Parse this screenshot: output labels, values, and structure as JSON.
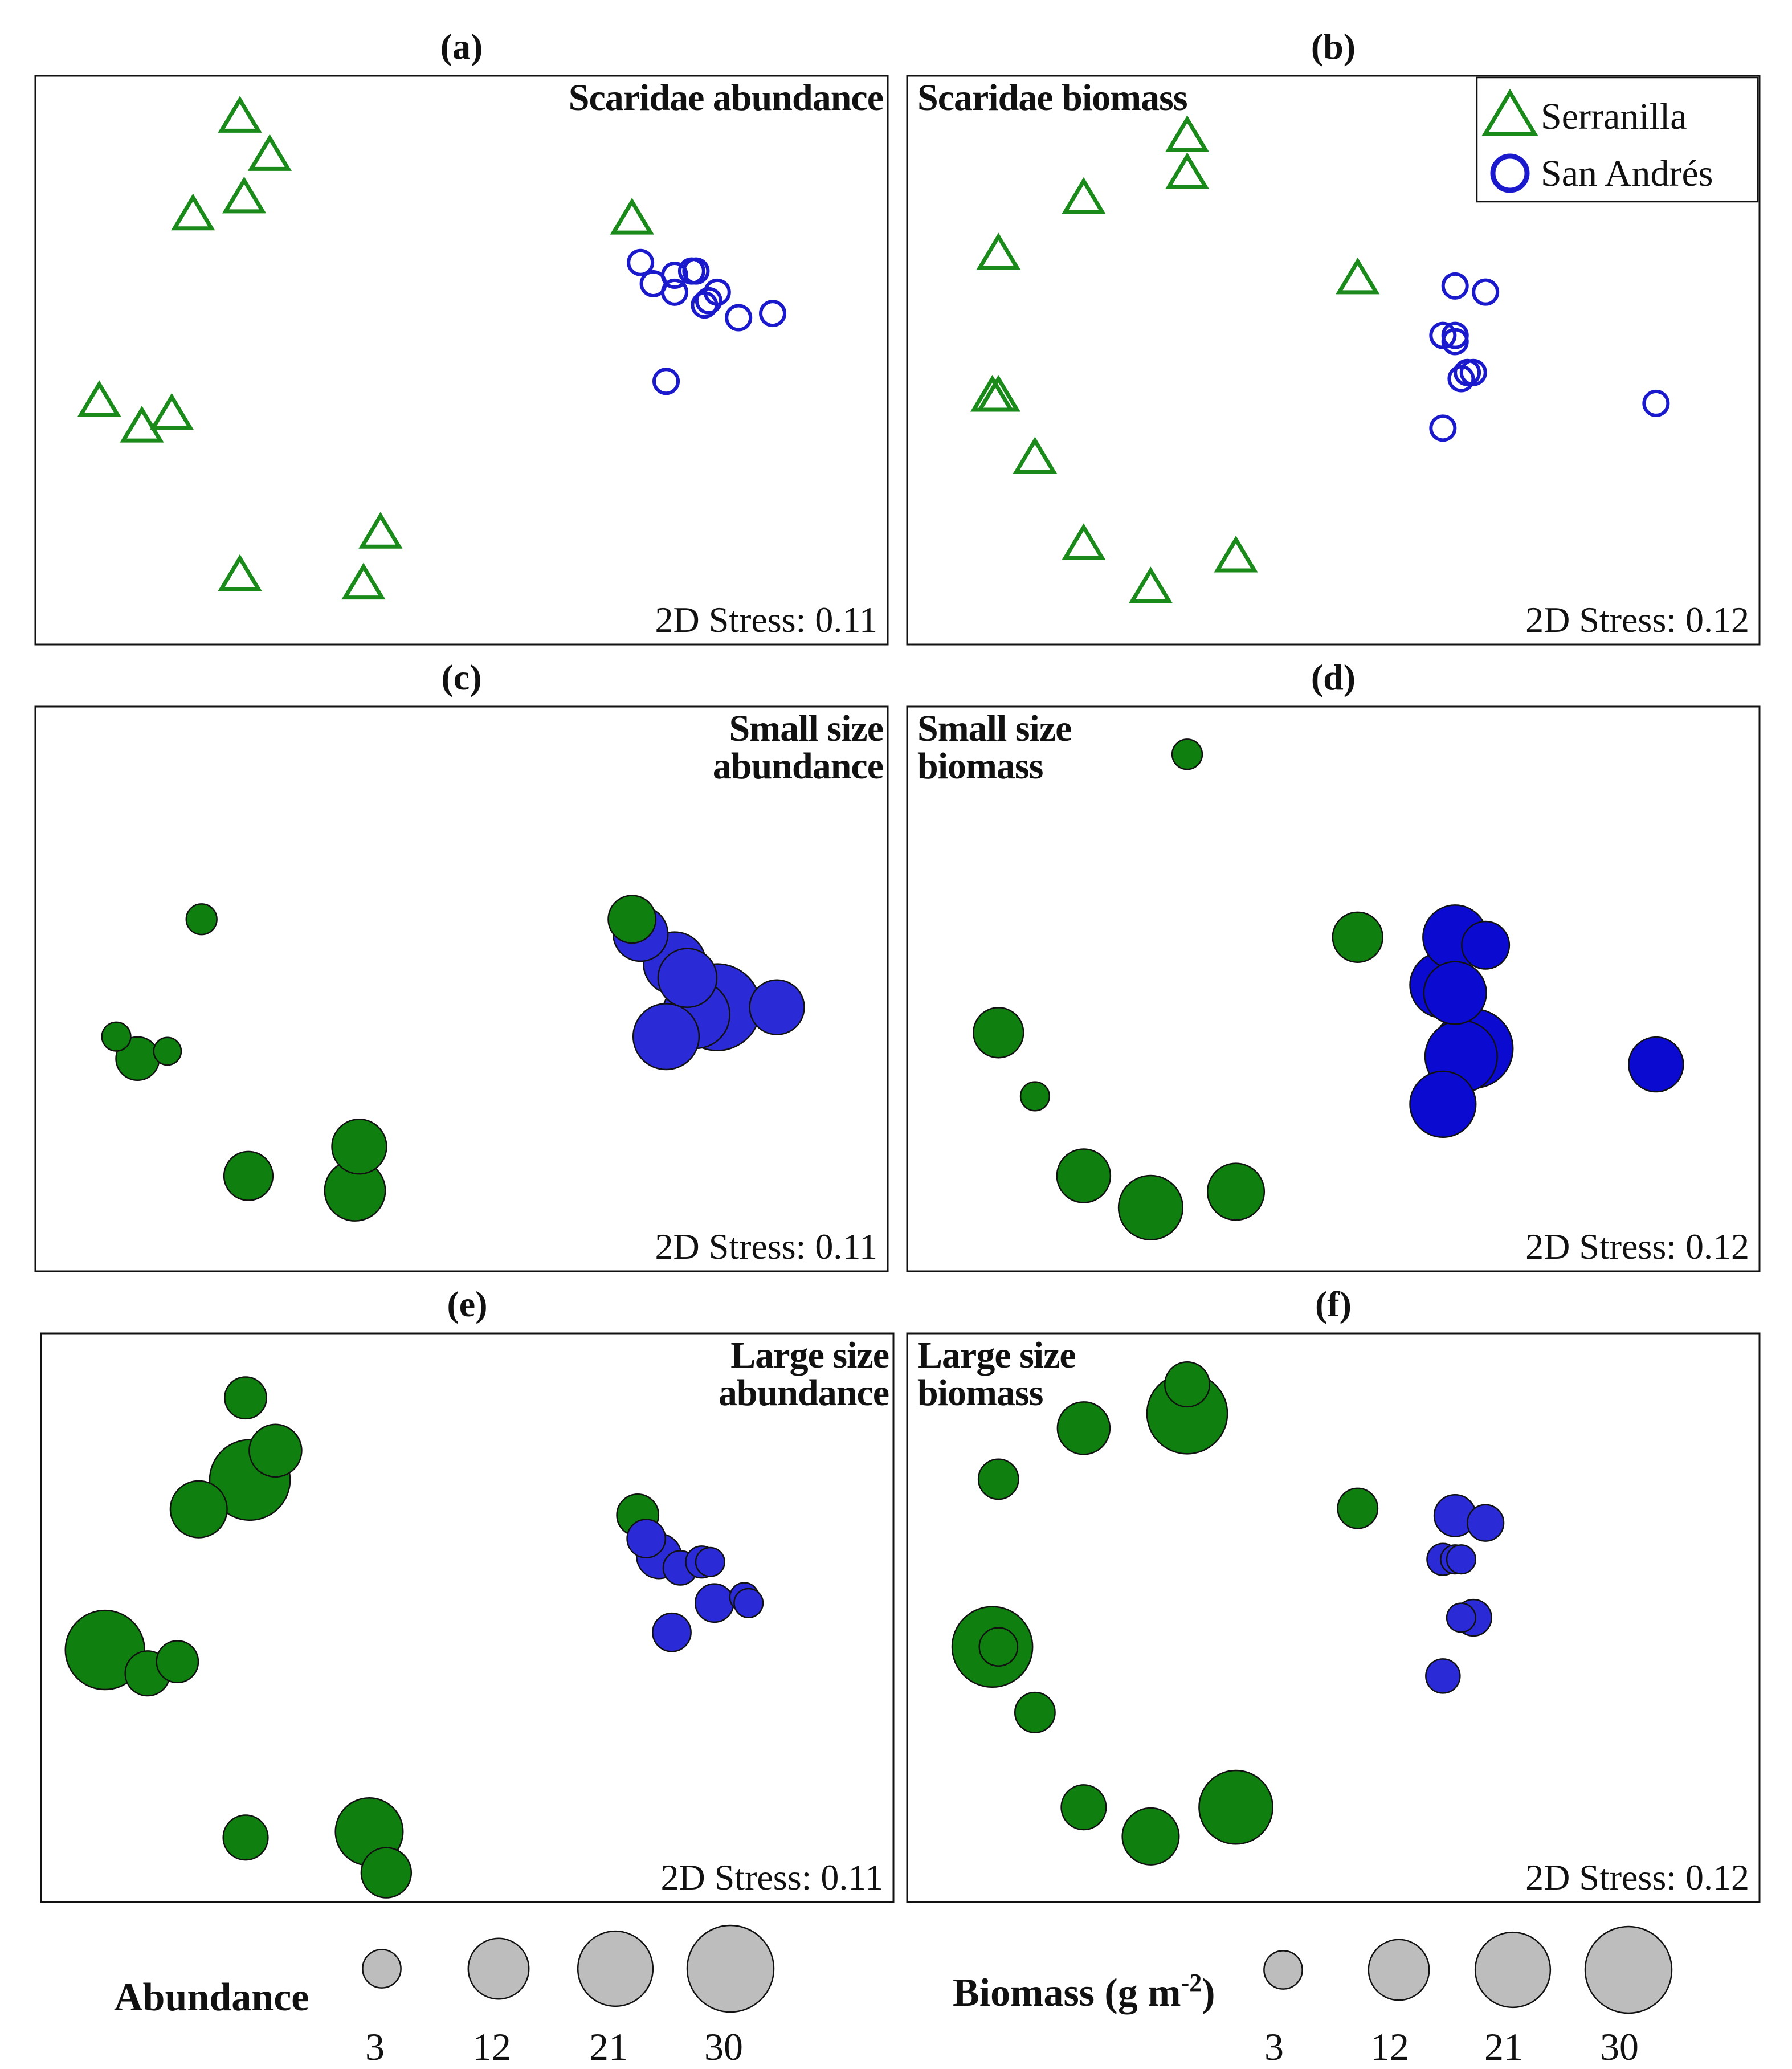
{
  "colors": {
    "serranilla": "#1a8a1a",
    "san_andres": "#1a1acc",
    "bubble_serranilla": "#0f7f0f",
    "bubble_san_andres": "#2a2ad6",
    "bubble_san_andres_biomass": "#0a0ad0",
    "scale_gray": "#bdbdbd"
  },
  "legend": {
    "serranilla": "Serranilla",
    "san_andres": "San Andrés"
  },
  "size_legends": {
    "abundance": {
      "title": "Abundance",
      "values": [
        3,
        12,
        21,
        30
      ]
    },
    "biomass": {
      "title_main": "Biomass (g m",
      "title_sup": "-2",
      "title_end": ")",
      "values": [
        3,
        12,
        21,
        30
      ]
    }
  },
  "chart_data": [
    {
      "id": "a",
      "label": "(a)",
      "type": "scatter",
      "title_lines": [
        "Scaridae abundance"
      ],
      "stress": "2D Stress: 0.11",
      "axes": "none",
      "series": [
        {
          "name": "Serranilla",
          "marker": "triangle",
          "points": [
            [
              -1.12,
              0.72
            ],
            [
              -1.05,
              0.63
            ],
            [
              -1.11,
              0.53
            ],
            [
              -1.23,
              0.49
            ],
            [
              -1.45,
              0.05
            ],
            [
              -1.35,
              -0.01
            ],
            [
              -1.28,
              0.02
            ],
            [
              -1.12,
              -0.36
            ],
            [
              -0.83,
              -0.38
            ],
            [
              -0.79,
              -0.26
            ],
            [
              -0.2,
              0.48
            ]
          ]
        },
        {
          "name": "San Andrés",
          "marker": "circle",
          "points": [
            [
              -0.18,
              0.38
            ],
            [
              -0.15,
              0.33
            ],
            [
              -0.1,
              0.35
            ],
            [
              -0.06,
              0.36
            ],
            [
              -0.05,
              0.36
            ],
            [
              -0.02,
              0.29
            ],
            [
              -0.03,
              0.28
            ],
            [
              0.0,
              0.31
            ],
            [
              0.13,
              0.26
            ],
            [
              -0.12,
              0.1
            ],
            [
              0.05,
              0.25
            ],
            [
              -0.1,
              0.31
            ]
          ]
        }
      ]
    },
    {
      "id": "b",
      "label": "(b)",
      "type": "scatter",
      "title_lines": [
        "Scaridae biomass"
      ],
      "stress": "2D Stress: 0.12",
      "axes": "none",
      "series": [
        {
          "name": "Serranilla",
          "marker": "triangle",
          "points": [
            [
              0.56,
              0.78
            ],
            [
              0.56,
              0.72
            ],
            [
              0.39,
              0.68
            ],
            [
              0.25,
              0.59
            ],
            [
              0.25,
              0.36
            ],
            [
              0.24,
              0.36
            ],
            [
              0.31,
              0.26
            ],
            [
              0.39,
              0.12
            ],
            [
              0.5,
              0.05
            ],
            [
              0.64,
              0.1
            ],
            [
              0.84,
              0.55
            ]
          ]
        },
        {
          "name": "San Andrés",
          "marker": "circle",
          "points": [
            [
              1.0,
              0.54
            ],
            [
              1.05,
              0.53
            ],
            [
              0.98,
              0.46
            ],
            [
              1.0,
              0.46
            ],
            [
              1.0,
              0.45
            ],
            [
              1.02,
              0.4
            ],
            [
              1.03,
              0.4
            ],
            [
              1.01,
              0.39
            ],
            [
              0.98,
              0.31
            ],
            [
              1.33,
              0.35
            ]
          ]
        }
      ]
    },
    {
      "id": "c",
      "label": "(c)",
      "type": "bubble",
      "title_lines": [
        "Small size",
        "abundance"
      ],
      "stress": "2D Stress: 0.11",
      "size_measure": "Abundance",
      "series": [
        {
          "name": "Serranilla",
          "points": [
            [
              -1.21,
              0.26,
              1.3
            ],
            [
              -1.41,
              0.1,
              1
            ],
            [
              -1.29,
              0.08,
              0.8
            ],
            [
              -1.36,
              0.07,
              4.5
            ],
            [
              -1.1,
              -0.09,
              6.5
            ],
            [
              -0.84,
              -0.05,
              9
            ],
            [
              -0.85,
              -0.11,
              12
            ],
            [
              -0.2,
              0.26,
              6
            ]
          ]
        },
        {
          "name": "San Andrés",
          "points": [
            [
              -0.18,
              0.24,
              9
            ],
            [
              -0.1,
              0.2,
              13
            ],
            [
              -0.07,
              0.18,
              11
            ],
            [
              0.0,
              0.14,
              30
            ],
            [
              -0.05,
              0.13,
              16
            ],
            [
              -0.12,
              0.1,
              15
            ],
            [
              0.14,
              0.14,
              9
            ]
          ]
        }
      ]
    },
    {
      "id": "d",
      "label": "(d)",
      "type": "bubble",
      "title_lines": [
        "Small size",
        "biomass"
      ],
      "stress": "2D Stress: 0.12",
      "size_measure": "Biomass (g m-2)",
      "series": [
        {
          "name": "Serranilla",
          "points": [
            [
              0.56,
              0.86
            ],
            [
              0.25,
              0.51
            ],
            [
              0.31,
              0.43
            ],
            [
              0.39,
              0.33
            ],
            [
              0.5,
              0.29
            ],
            [
              0.64,
              0.31
            ],
            [
              0.84,
              0.63
            ]
          ]
        },
        {
          "name": "San Andrés",
          "points": [
            [
              1.0,
              0.63
            ],
            [
              1.05,
              0.62
            ],
            [
              0.98,
              0.57
            ],
            [
              1.0,
              0.56
            ],
            [
              1.03,
              0.49
            ],
            [
              1.01,
              0.48
            ],
            [
              0.98,
              0.42
            ],
            [
              1.33,
              0.47
            ]
          ]
        }
      ],
      "sizes": {
        "Serranilla": [
          1.2,
          7,
          1,
          8.5,
          14,
          10,
          7
        ],
        "San Andrés": [
          14,
          6,
          15,
          13,
          24,
          19,
          15,
          9
        ]
      }
    },
    {
      "id": "e",
      "label": "(e)",
      "type": "bubble",
      "title_lines": [
        "Large size",
        "abundance"
      ],
      "stress": "2D Stress: 0.11",
      "size_measure": "Abundance",
      "series": [
        {
          "name": "Serranilla",
          "points": [
            [
              -1.12,
              0.82,
              4
            ],
            [
              -1.05,
              0.73,
              8
            ],
            [
              -1.11,
              0.68,
              25
            ],
            [
              -1.23,
              0.63,
              10
            ],
            [
              -1.45,
              0.39,
              24
            ],
            [
              -1.35,
              0.35,
              5
            ],
            [
              -1.28,
              0.37,
              4
            ],
            [
              -1.12,
              0.07,
              5
            ],
            [
              -0.83,
              0.08,
              16
            ],
            [
              -0.79,
              0.01,
              7
            ],
            [
              -0.2,
              0.62,
              4
            ]
          ]
        },
        {
          "name": "San Andrés",
          "points": [
            [
              -0.18,
              0.58,
              3
            ],
            [
              -0.15,
              0.55,
              5
            ],
            [
              -0.1,
              0.53,
              2
            ],
            [
              -0.05,
              0.54,
              1.5
            ],
            [
              -0.03,
              0.54,
              1
            ],
            [
              -0.02,
              0.47,
              3
            ],
            [
              0.05,
              0.48,
              1
            ],
            [
              0.06,
              0.47,
              1
            ],
            [
              -0.12,
              0.42,
              3
            ]
          ]
        }
      ]
    },
    {
      "id": "f",
      "label": "(f)",
      "type": "bubble",
      "title_lines": [
        "Large size",
        "biomass"
      ],
      "stress": "2D Stress: 0.12",
      "size_measure": "Biomass (g m-2)",
      "series": [
        {
          "name": "Serranilla",
          "points": [
            [
              0.56,
              0.88
            ],
            [
              0.56,
              0.84
            ],
            [
              0.39,
              0.82
            ],
            [
              0.25,
              0.75
            ],
            [
              0.24,
              0.52
            ],
            [
              0.25,
              0.52
            ],
            [
              0.31,
              0.43
            ],
            [
              0.39,
              0.3
            ],
            [
              0.5,
              0.26
            ],
            [
              0.64,
              0.3
            ],
            [
              0.84,
              0.71
            ]
          ]
        },
        {
          "name": "San Andrés",
          "points": [
            [
              1.0,
              0.7
            ],
            [
              1.05,
              0.69
            ],
            [
              0.98,
              0.64
            ],
            [
              1.0,
              0.64
            ],
            [
              1.01,
              0.64
            ],
            [
              1.03,
              0.56
            ],
            [
              1.01,
              0.56
            ],
            [
              0.98,
              0.48
            ]
          ]
        }
      ],
      "sizes": {
        "Serranilla": [
          5,
          25,
          8,
          3.5,
          25,
          3,
          3.5,
          5,
          10,
          20,
          3.5
        ],
        "San Andrés": [
          4,
          2.5,
          1.5,
          1,
          1,
          2.5,
          1,
          2
        ]
      }
    }
  ]
}
